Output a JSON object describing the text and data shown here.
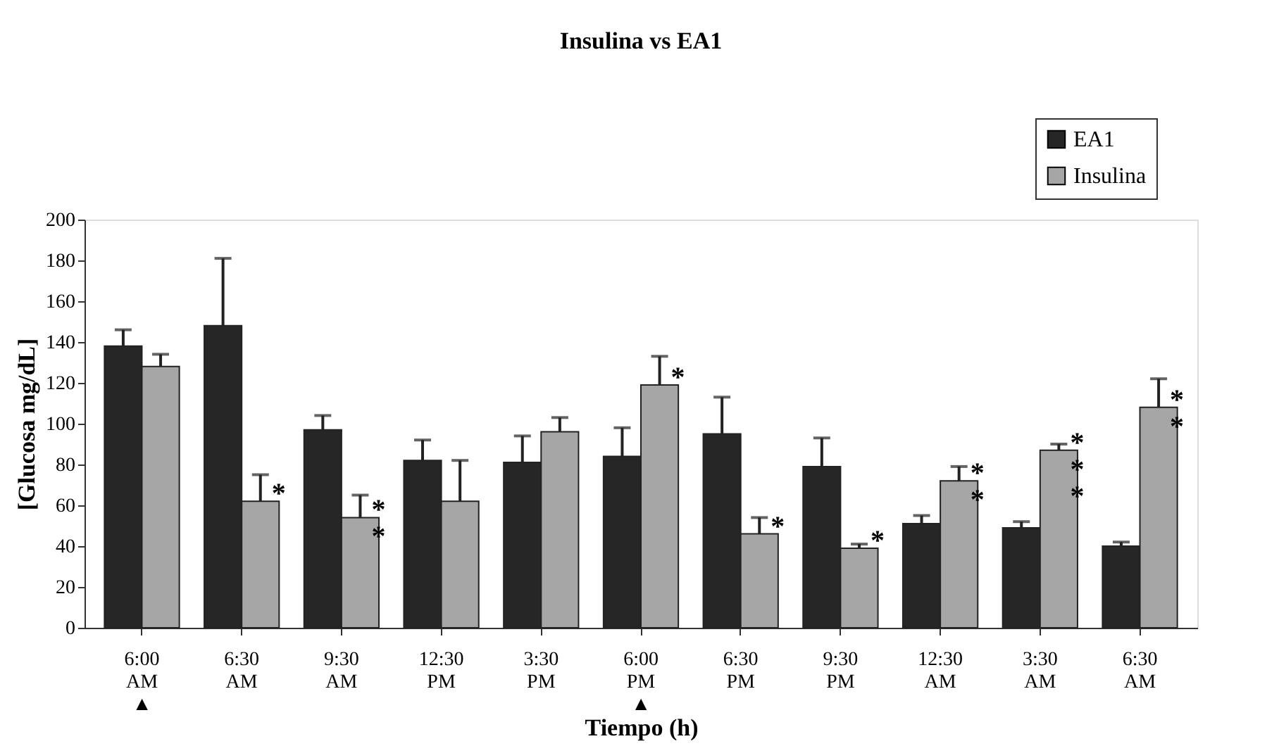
{
  "chart_data": {
    "type": "bar",
    "title": "Insulina vs EA1",
    "xlabel": "Tiempo (h)",
    "ylabel": "[Glucosa mg/dL]",
    "categories": [
      "6:00 AM ▲",
      "6:30 AM",
      "9:30 AM",
      "12:30 PM",
      "3:30 PM",
      "6:00 PM ▲",
      "6:30 PM",
      "9:30 PM",
      "12:30 AM",
      "3:30 AM",
      "6:30 AM"
    ],
    "series": [
      {
        "name": "EA1",
        "color": "#262626",
        "values": [
          138,
          148,
          97,
          82,
          81,
          84,
          95,
          79,
          51,
          49,
          40
        ],
        "errors": [
          [
            138,
            146
          ],
          [
            148,
            181
          ],
          [
            97,
            104
          ],
          [
            82,
            92
          ],
          [
            81,
            94
          ],
          [
            84,
            98
          ],
          [
            95,
            113
          ],
          [
            79,
            93
          ],
          [
            51,
            55
          ],
          [
            49,
            52
          ],
          [
            40,
            42
          ]
        ]
      },
      {
        "name": "Insulina",
        "color": "#a6a6a6",
        "values": [
          128,
          62,
          54,
          62,
          96,
          119,
          46,
          39,
          72,
          87,
          108
        ],
        "errors": [
          [
            128,
            134
          ],
          [
            62,
            75
          ],
          [
            54,
            65
          ],
          [
            62,
            82
          ],
          [
            96,
            103
          ],
          [
            119,
            133
          ],
          [
            46,
            54
          ],
          [
            39,
            41
          ],
          [
            72,
            79
          ],
          [
            87,
            90
          ],
          [
            108,
            122
          ]
        ]
      }
    ],
    "ylim": [
      0,
      200
    ],
    "yticks": [
      0,
      20,
      40,
      60,
      80,
      100,
      120,
      140,
      160,
      180,
      200
    ],
    "grid": false,
    "legend": "top right",
    "annotations": [
      {
        "text": "*",
        "x": "6:30 AM",
        "y": 62
      },
      {
        "text": "*\n*",
        "x": "9:30 AM",
        "y": 54
      },
      {
        "text": "*",
        "x": "6:00 PM ▲",
        "y": 119
      },
      {
        "text": "*",
        "x": "6:30 PM",
        "y": 46
      },
      {
        "text": "*",
        "x": "9:30 PM",
        "y": 39
      },
      {
        "text": "*\n*",
        "x": "12:30 AM",
        "y": 72
      },
      {
        "text": "*\n*\n*",
        "x": "3:30 AM",
        "y": 87
      },
      {
        "text": "*\n*",
        "y": 108
      }
    ]
  }
}
